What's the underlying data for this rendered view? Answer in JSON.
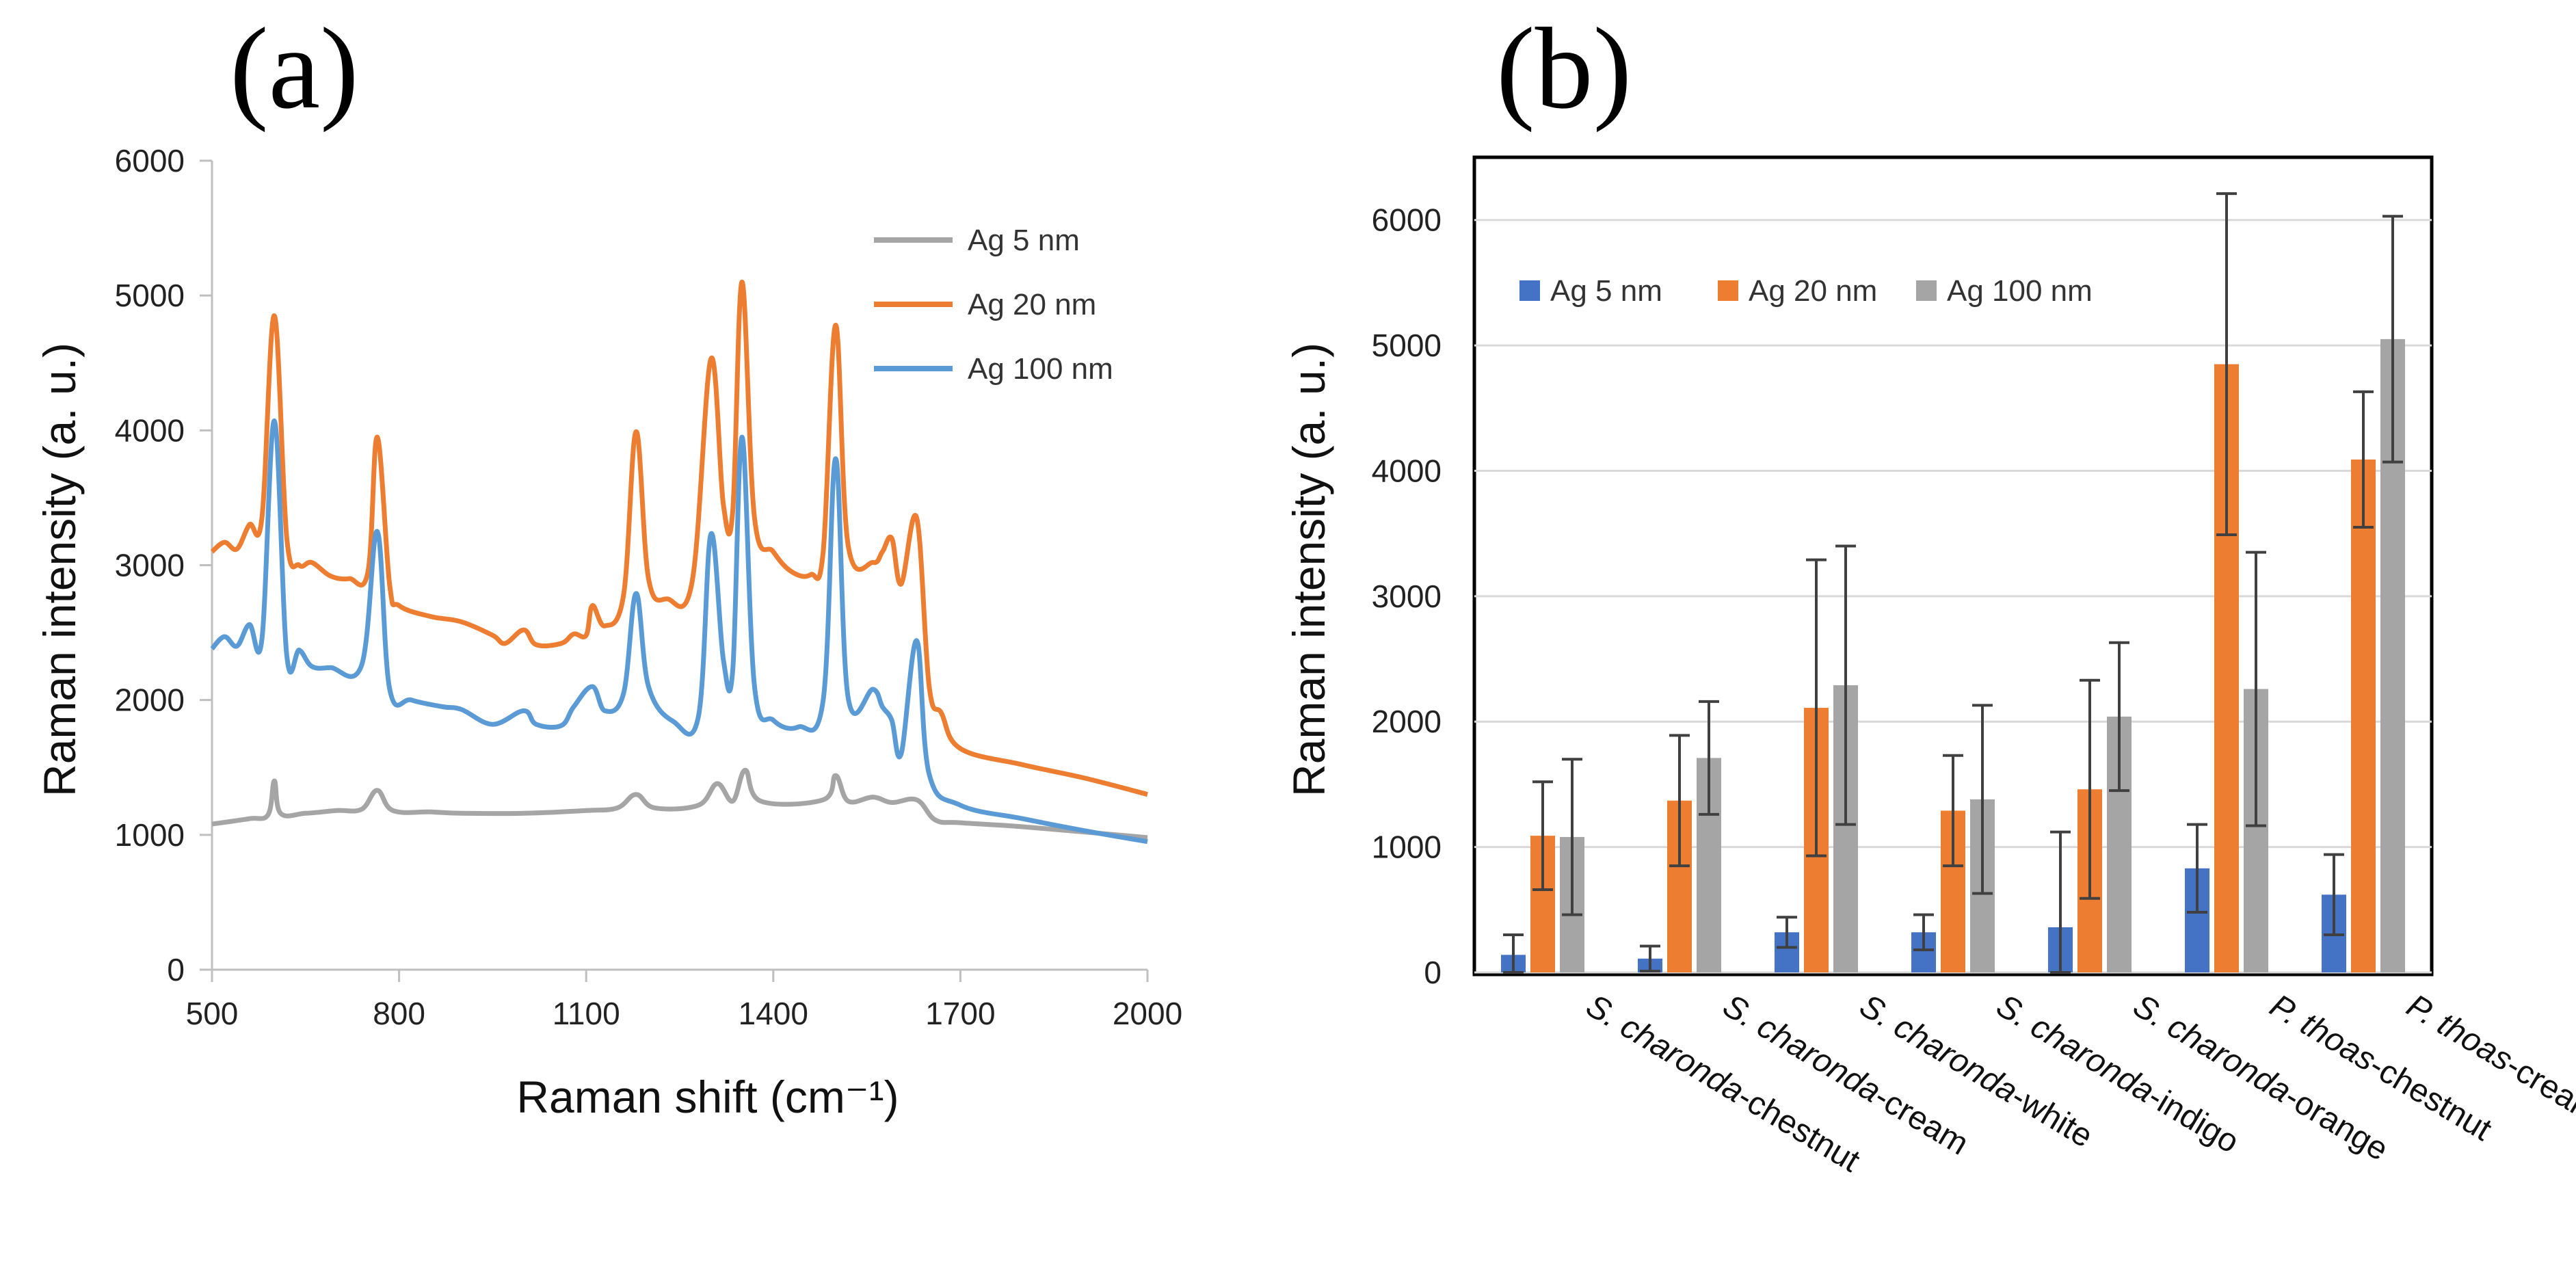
{
  "panel_labels": {
    "a": "(a)",
    "b": "(b)"
  },
  "chart_data": [
    {
      "type": "line",
      "panel": "(a)",
      "xlabel": "Raman shift (cm⁻¹)",
      "ylabel": "Raman intensity (a. u.)",
      "xlim": [
        500,
        2000
      ],
      "ylim": [
        0,
        6000
      ],
      "xticks": [
        500,
        800,
        1100,
        1400,
        1700,
        2000
      ],
      "yticks": [
        0,
        1000,
        2000,
        3000,
        4000,
        5000,
        6000
      ],
      "legend_position": "top-right",
      "series": [
        {
          "name": "Ag 5 nm",
          "color": "#A5A5A5",
          "points": [
            [
              500,
              1080
            ],
            [
              560,
              1120
            ],
            [
              590,
              1150
            ],
            [
              600,
              1400
            ],
            [
              610,
              1160
            ],
            [
              650,
              1160
            ],
            [
              700,
              1180
            ],
            [
              740,
              1190
            ],
            [
              765,
              1330
            ],
            [
              790,
              1180
            ],
            [
              850,
              1170
            ],
            [
              900,
              1160
            ],
            [
              1000,
              1160
            ],
            [
              1100,
              1180
            ],
            [
              1150,
              1200
            ],
            [
              1180,
              1300
            ],
            [
              1210,
              1200
            ],
            [
              1280,
              1220
            ],
            [
              1310,
              1380
            ],
            [
              1335,
              1250
            ],
            [
              1355,
              1480
            ],
            [
              1380,
              1250
            ],
            [
              1480,
              1260
            ],
            [
              1500,
              1440
            ],
            [
              1520,
              1250
            ],
            [
              1560,
              1280
            ],
            [
              1590,
              1240
            ],
            [
              1630,
              1260
            ],
            [
              1660,
              1110
            ],
            [
              1700,
              1090
            ],
            [
              1800,
              1060
            ],
            [
              2000,
              980
            ]
          ]
        },
        {
          "name": "Ag 20 nm",
          "color": "#ED7D31",
          "points": [
            [
              500,
              3100
            ],
            [
              520,
              3170
            ],
            [
              540,
              3120
            ],
            [
              560,
              3300
            ],
            [
              580,
              3350
            ],
            [
              600,
              4850
            ],
            [
              620,
              3200
            ],
            [
              640,
              3000
            ],
            [
              660,
              3020
            ],
            [
              690,
              2920
            ],
            [
              720,
              2900
            ],
            [
              750,
              2950
            ],
            [
              765,
              3950
            ],
            [
              785,
              2850
            ],
            [
              800,
              2700
            ],
            [
              850,
              2620
            ],
            [
              900,
              2580
            ],
            [
              950,
              2480
            ],
            [
              970,
              2420
            ],
            [
              1000,
              2520
            ],
            [
              1020,
              2410
            ],
            [
              1060,
              2420
            ],
            [
              1080,
              2490
            ],
            [
              1100,
              2480
            ],
            [
              1110,
              2700
            ],
            [
              1130,
              2550
            ],
            [
              1160,
              2780
            ],
            [
              1180,
              3990
            ],
            [
              1200,
              2900
            ],
            [
              1230,
              2750
            ],
            [
              1270,
              2880
            ],
            [
              1300,
              4530
            ],
            [
              1320,
              3450
            ],
            [
              1335,
              3400
            ],
            [
              1350,
              5100
            ],
            [
              1370,
              3350
            ],
            [
              1400,
              3100
            ],
            [
              1430,
              2950
            ],
            [
              1460,
              2930
            ],
            [
              1480,
              3100
            ],
            [
              1500,
              4780
            ],
            [
              1520,
              3150
            ],
            [
              1560,
              3020
            ],
            [
              1575,
              3100
            ],
            [
              1590,
              3200
            ],
            [
              1605,
              2860
            ],
            [
              1630,
              3350
            ],
            [
              1650,
              2100
            ],
            [
              1670,
              1900
            ],
            [
              1700,
              1640
            ],
            [
              1800,
              1520
            ],
            [
              1900,
              1420
            ],
            [
              2000,
              1300
            ]
          ]
        },
        {
          "name": "Ag 100 nm",
          "color": "#5B9BD5",
          "points": [
            [
              500,
              2380
            ],
            [
              520,
              2470
            ],
            [
              540,
              2400
            ],
            [
              560,
              2560
            ],
            [
              580,
              2450
            ],
            [
              600,
              4070
            ],
            [
              620,
              2330
            ],
            [
              640,
              2370
            ],
            [
              660,
              2250
            ],
            [
              690,
              2240
            ],
            [
              740,
              2260
            ],
            [
              765,
              3250
            ],
            [
              785,
              2080
            ],
            [
              820,
              2000
            ],
            [
              870,
              1950
            ],
            [
              900,
              1930
            ],
            [
              950,
              1820
            ],
            [
              1000,
              1920
            ],
            [
              1020,
              1820
            ],
            [
              1060,
              1810
            ],
            [
              1080,
              1950
            ],
            [
              1110,
              2100
            ],
            [
              1130,
              1920
            ],
            [
              1160,
              2050
            ],
            [
              1180,
              2790
            ],
            [
              1200,
              2100
            ],
            [
              1240,
              1840
            ],
            [
              1280,
              1880
            ],
            [
              1300,
              3230
            ],
            [
              1320,
              2300
            ],
            [
              1335,
              2220
            ],
            [
              1350,
              3950
            ],
            [
              1370,
              2100
            ],
            [
              1400,
              1850
            ],
            [
              1440,
              1800
            ],
            [
              1480,
              2000
            ],
            [
              1500,
              3790
            ],
            [
              1520,
              2020
            ],
            [
              1560,
              2080
            ],
            [
              1575,
              1950
            ],
            [
              1590,
              1850
            ],
            [
              1605,
              1600
            ],
            [
              1630,
              2440
            ],
            [
              1650,
              1450
            ],
            [
              1700,
              1220
            ],
            [
              1800,
              1120
            ],
            [
              1900,
              1030
            ],
            [
              2000,
              950
            ]
          ]
        }
      ]
    },
    {
      "type": "bar",
      "panel": "(b)",
      "ylabel": "Raman intensity (a. u.)",
      "ylim": [
        0,
        6500
      ],
      "yticks": [
        0,
        1000,
        2000,
        3000,
        4000,
        5000,
        6000
      ],
      "gridlines": true,
      "legend_position": "top-left",
      "categories": [
        {
          "genus": "S.",
          "rest": "charonda-chestnut"
        },
        {
          "genus": "S.",
          "rest": "charonda-cream"
        },
        {
          "genus": "S.",
          "rest": "charonda-white"
        },
        {
          "genus": "S.",
          "rest": "charonda-indigo"
        },
        {
          "genus": "S.",
          "rest": "charonda-orange"
        },
        {
          "genus": "P.",
          "rest": "thoas-chestnut"
        },
        {
          "genus": "P.",
          "rest": "thoas-cream"
        }
      ],
      "series": [
        {
          "name": "Ag 5 nm",
          "color": "#4472C4",
          "values": [
            140,
            110,
            320,
            320,
            360,
            830,
            620
          ],
          "errors": [
            160,
            100,
            120,
            140,
            760,
            350,
            320
          ]
        },
        {
          "name": "Ag 20 nm",
          "color": "#ED7D31",
          "values": [
            1090,
            1370,
            2110,
            1290,
            1460,
            4850,
            4090
          ],
          "errors": [
            430,
            520,
            1180,
            440,
            870,
            1360,
            540
          ]
        },
        {
          "name": "Ag 100 nm",
          "color": "#A5A5A5",
          "values": [
            1080,
            1710,
            2290,
            1380,
            2040,
            2260,
            5050
          ],
          "errors": [
            620,
            450,
            1110,
            750,
            590,
            1090,
            980
          ]
        }
      ]
    }
  ]
}
